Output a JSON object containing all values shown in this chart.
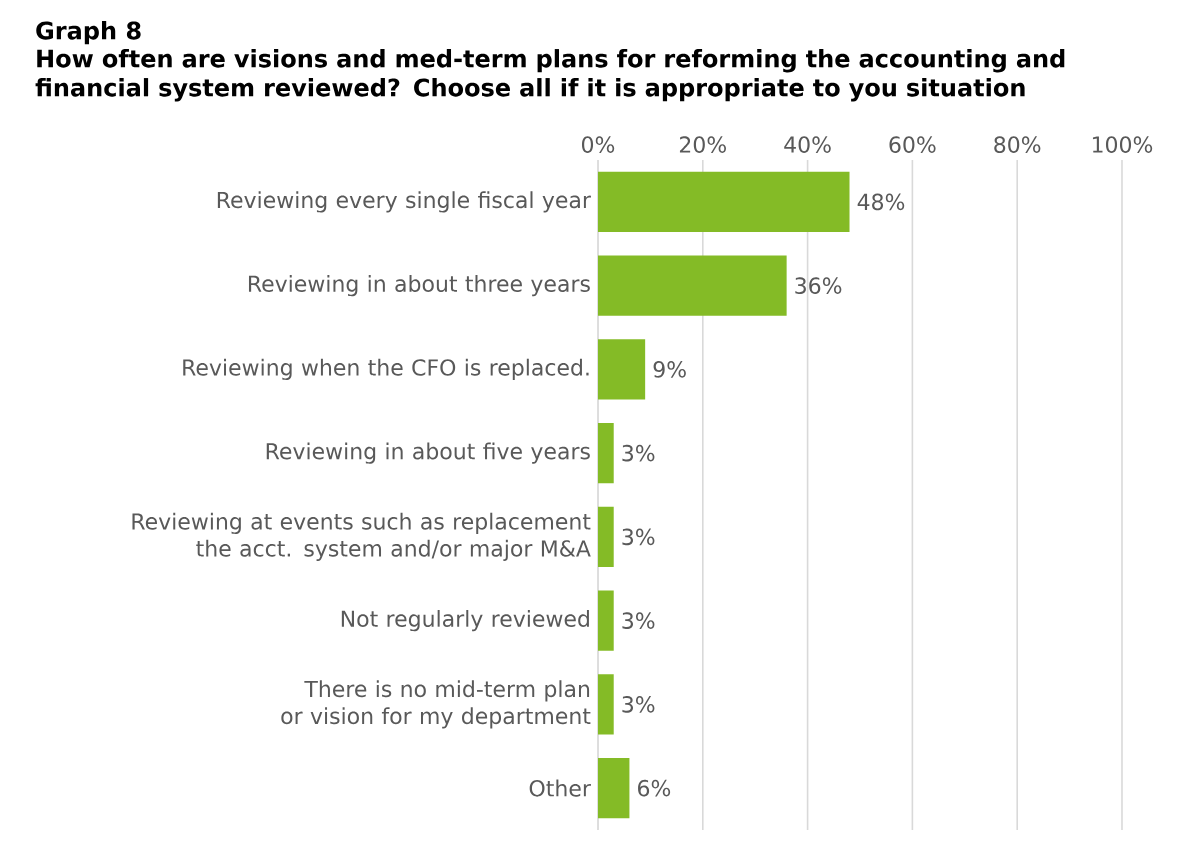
{
  "chart_data": {
    "type": "bar",
    "orientation": "horizontal",
    "title": "Graph 8",
    "subtitle": "How often are visions and med-term plans for reforming the accounting and financial system reviewed? Choose all if it is appropriate to you situation",
    "categories": [
      "Reviewing every single fiscal year",
      "Reviewing in about three years",
      "Reviewing when the CFO is replaced.",
      "Reviewing in about five years",
      "Reviewing at events such as replacement the acct. system and/or major M&A",
      "Not regularly reviewed",
      "There is no mid-term plan or vision for my department",
      "Other"
    ],
    "values": [
      48,
      36,
      9,
      3,
      3,
      3,
      3,
      6
    ],
    "value_labels": [
      "48%",
      "36%",
      "9%",
      "3%",
      "3%",
      "3%",
      "3%",
      "6%"
    ],
    "color": "#84bb26",
    "xlim": [
      0,
      100
    ],
    "xticks": [
      {
        "value": 0,
        "label": "0%"
      },
      {
        "value": 20,
        "label": "20%"
      },
      {
        "value": 40,
        "label": "40%"
      },
      {
        "value": 60,
        "label": "60%"
      },
      {
        "value": 80,
        "label": "80%"
      },
      {
        "value": 100,
        "label": "100%"
      }
    ],
    "grid": "x"
  }
}
